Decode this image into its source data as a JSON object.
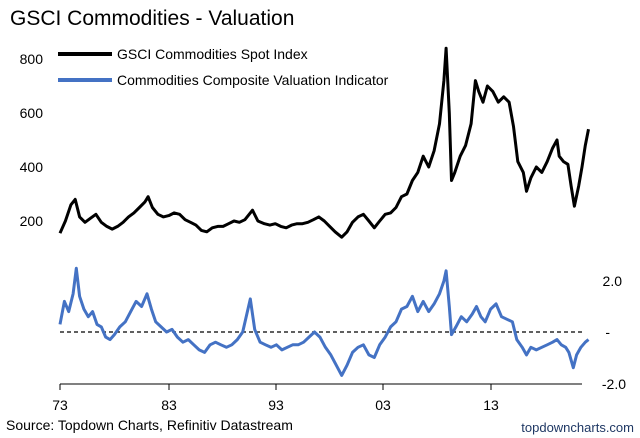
{
  "chart_data": {
    "type": "line",
    "title": "GSCI Commodities - Valuation",
    "source": "Source: Topdown Charts, Refinitiv Datastream",
    "brand": "topdowncharts.com",
    "x_ticks": [
      "73",
      "83",
      "93",
      "03",
      "13"
    ],
    "xlim": [
      1973,
      2021
    ],
    "upper_panel": {
      "ylim": [
        100,
        880
      ],
      "y_ticks": [
        "200",
        "400",
        "600",
        "800"
      ],
      "series": [
        {
          "name": "GSCI Commodities Spot Index",
          "color": "#000000",
          "points": [
            [
              1973.0,
              155
            ],
            [
              1973.5,
              200
            ],
            [
              1974.0,
              260
            ],
            [
              1974.4,
              280
            ],
            [
              1974.8,
              215
            ],
            [
              1975.3,
              195
            ],
            [
              1975.8,
              210
            ],
            [
              1976.3,
              225
            ],
            [
              1976.8,
              195
            ],
            [
              1977.3,
              180
            ],
            [
              1977.8,
              170
            ],
            [
              1978.3,
              180
            ],
            [
              1978.8,
              195
            ],
            [
              1979.3,
              215
            ],
            [
              1979.8,
              230
            ],
            [
              1980.3,
              250
            ],
            [
              1980.8,
              270
            ],
            [
              1981.1,
              290
            ],
            [
              1981.5,
              250
            ],
            [
              1982.0,
              225
            ],
            [
              1982.5,
              215
            ],
            [
              1983.0,
              220
            ],
            [
              1983.5,
              230
            ],
            [
              1984.0,
              225
            ],
            [
              1984.5,
              205
            ],
            [
              1985.0,
              195
            ],
            [
              1985.5,
              185
            ],
            [
              1986.0,
              165
            ],
            [
              1986.5,
              160
            ],
            [
              1987.0,
              175
            ],
            [
              1987.5,
              180
            ],
            [
              1988.0,
              180
            ],
            [
              1988.5,
              190
            ],
            [
              1989.0,
              200
            ],
            [
              1989.5,
              195
            ],
            [
              1990.0,
              205
            ],
            [
              1990.7,
              240
            ],
            [
              1991.2,
              200
            ],
            [
              1991.8,
              190
            ],
            [
              1992.3,
              185
            ],
            [
              1992.8,
              190
            ],
            [
              1993.3,
              180
            ],
            [
              1993.8,
              175
            ],
            [
              1994.3,
              185
            ],
            [
              1994.8,
              190
            ],
            [
              1995.3,
              190
            ],
            [
              1995.8,
              195
            ],
            [
              1996.3,
              205
            ],
            [
              1996.8,
              215
            ],
            [
              1997.3,
              200
            ],
            [
              1997.8,
              180
            ],
            [
              1998.3,
              160
            ],
            [
              1998.9,
              140
            ],
            [
              1999.4,
              160
            ],
            [
              1999.9,
              195
            ],
            [
              2000.4,
              215
            ],
            [
              2000.9,
              225
            ],
            [
              2001.4,
              200
            ],
            [
              2001.9,
              175
            ],
            [
              2002.4,
              200
            ],
            [
              2002.9,
              225
            ],
            [
              2003.4,
              230
            ],
            [
              2003.9,
              250
            ],
            [
              2004.4,
              290
            ],
            [
              2004.9,
              300
            ],
            [
              2005.4,
              350
            ],
            [
              2005.9,
              380
            ],
            [
              2006.4,
              440
            ],
            [
              2006.9,
              400
            ],
            [
              2007.4,
              460
            ],
            [
              2007.9,
              560
            ],
            [
              2008.3,
              720
            ],
            [
              2008.5,
              840
            ],
            [
              2008.8,
              600
            ],
            [
              2009.0,
              350
            ],
            [
              2009.3,
              380
            ],
            [
              2009.8,
              440
            ],
            [
              2010.3,
              480
            ],
            [
              2010.8,
              560
            ],
            [
              2011.2,
              720
            ],
            [
              2011.5,
              680
            ],
            [
              2011.9,
              640
            ],
            [
              2012.3,
              700
            ],
            [
              2012.8,
              680
            ],
            [
              2013.3,
              640
            ],
            [
              2013.8,
              660
            ],
            [
              2014.3,
              640
            ],
            [
              2014.7,
              550
            ],
            [
              2015.1,
              420
            ],
            [
              2015.6,
              380
            ],
            [
              2015.9,
              310
            ],
            [
              2016.3,
              360
            ],
            [
              2016.8,
              400
            ],
            [
              2017.3,
              380
            ],
            [
              2017.8,
              420
            ],
            [
              2018.3,
              470
            ],
            [
              2018.7,
              500
            ],
            [
              2018.9,
              440
            ],
            [
              2019.3,
              420
            ],
            [
              2019.7,
              410
            ],
            [
              2020.0,
              330
            ],
            [
              2020.3,
              255
            ],
            [
              2020.7,
              330
            ],
            [
              2021.0,
              400
            ],
            [
              2021.3,
              480
            ],
            [
              2021.6,
              540
            ]
          ]
        }
      ]
    },
    "lower_panel": {
      "ylim": [
        -2.0,
        2.6
      ],
      "y_ticks": [
        "2.0",
        "-",
        "-2.0"
      ],
      "reference_line": 0,
      "series": [
        {
          "name": "Commodities Composite Valuation Indicator",
          "color": "#4472c4",
          "points": [
            [
              1973.0,
              0.3
            ],
            [
              1973.4,
              1.2
            ],
            [
              1973.8,
              0.8
            ],
            [
              1974.2,
              1.5
            ],
            [
              1974.5,
              2.5
            ],
            [
              1974.8,
              1.4
            ],
            [
              1975.2,
              0.9
            ],
            [
              1975.6,
              0.6
            ],
            [
              1976.0,
              0.8
            ],
            [
              1976.4,
              0.3
            ],
            [
              1976.8,
              0.2
            ],
            [
              1977.2,
              -0.2
            ],
            [
              1977.6,
              -0.3
            ],
            [
              1978.0,
              -0.1
            ],
            [
              1978.5,
              0.2
            ],
            [
              1979.0,
              0.4
            ],
            [
              1979.5,
              0.8
            ],
            [
              1980.0,
              1.2
            ],
            [
              1980.5,
              1.0
            ],
            [
              1981.0,
              1.5
            ],
            [
              1981.4,
              0.9
            ],
            [
              1981.8,
              0.4
            ],
            [
              1982.3,
              0.2
            ],
            [
              1982.8,
              0.0
            ],
            [
              1983.3,
              0.1
            ],
            [
              1983.8,
              -0.2
            ],
            [
              1984.3,
              -0.4
            ],
            [
              1984.8,
              -0.3
            ],
            [
              1985.3,
              -0.5
            ],
            [
              1985.8,
              -0.7
            ],
            [
              1986.3,
              -0.8
            ],
            [
              1986.8,
              -0.5
            ],
            [
              1987.3,
              -0.4
            ],
            [
              1987.8,
              -0.5
            ],
            [
              1988.3,
              -0.6
            ],
            [
              1988.8,
              -0.5
            ],
            [
              1989.3,
              -0.3
            ],
            [
              1989.8,
              0.0
            ],
            [
              1990.5,
              1.3
            ],
            [
              1990.9,
              0.1
            ],
            [
              1991.4,
              -0.4
            ],
            [
              1991.9,
              -0.5
            ],
            [
              1992.4,
              -0.6
            ],
            [
              1992.9,
              -0.5
            ],
            [
              1993.4,
              -0.7
            ],
            [
              1993.9,
              -0.6
            ],
            [
              1994.4,
              -0.5
            ],
            [
              1994.9,
              -0.5
            ],
            [
              1995.4,
              -0.4
            ],
            [
              1995.9,
              -0.2
            ],
            [
              1996.4,
              0.0
            ],
            [
              1996.9,
              -0.2
            ],
            [
              1997.4,
              -0.6
            ],
            [
              1997.9,
              -0.9
            ],
            [
              1998.4,
              -1.3
            ],
            [
              1998.9,
              -1.7
            ],
            [
              1999.4,
              -1.3
            ],
            [
              1999.9,
              -0.8
            ],
            [
              2000.4,
              -0.6
            ],
            [
              2000.9,
              -0.5
            ],
            [
              2001.4,
              -0.9
            ],
            [
              2001.9,
              -1.0
            ],
            [
              2002.4,
              -0.5
            ],
            [
              2002.9,
              -0.2
            ],
            [
              2003.4,
              0.2
            ],
            [
              2003.9,
              0.4
            ],
            [
              2004.4,
              0.9
            ],
            [
              2004.9,
              1.0
            ],
            [
              2005.4,
              1.4
            ],
            [
              2005.9,
              0.8
            ],
            [
              2006.4,
              1.2
            ],
            [
              2006.9,
              0.8
            ],
            [
              2007.4,
              1.1
            ],
            [
              2007.9,
              1.5
            ],
            [
              2008.3,
              2.0
            ],
            [
              2008.5,
              2.4
            ],
            [
              2008.8,
              1.0
            ],
            [
              2009.0,
              -0.1
            ],
            [
              2009.4,
              0.2
            ],
            [
              2009.9,
              0.6
            ],
            [
              2010.4,
              0.4
            ],
            [
              2010.9,
              0.7
            ],
            [
              2011.3,
              1.0
            ],
            [
              2011.7,
              0.6
            ],
            [
              2012.1,
              0.4
            ],
            [
              2012.6,
              0.9
            ],
            [
              2013.1,
              1.1
            ],
            [
              2013.6,
              0.6
            ],
            [
              2014.1,
              0.5
            ],
            [
              2014.6,
              0.4
            ],
            [
              2015.0,
              -0.3
            ],
            [
              2015.5,
              -0.6
            ],
            [
              2015.9,
              -0.9
            ],
            [
              2016.3,
              -0.6
            ],
            [
              2016.8,
              -0.7
            ],
            [
              2017.3,
              -0.6
            ],
            [
              2017.8,
              -0.5
            ],
            [
              2018.3,
              -0.4
            ],
            [
              2018.7,
              -0.3
            ],
            [
              2019.1,
              -0.5
            ],
            [
              2019.5,
              -0.6
            ],
            [
              2019.8,
              -0.8
            ],
            [
              2020.2,
              -1.4
            ],
            [
              2020.5,
              -0.9
            ],
            [
              2020.9,
              -0.6
            ],
            [
              2021.3,
              -0.4
            ],
            [
              2021.6,
              -0.3
            ]
          ]
        }
      ]
    }
  }
}
